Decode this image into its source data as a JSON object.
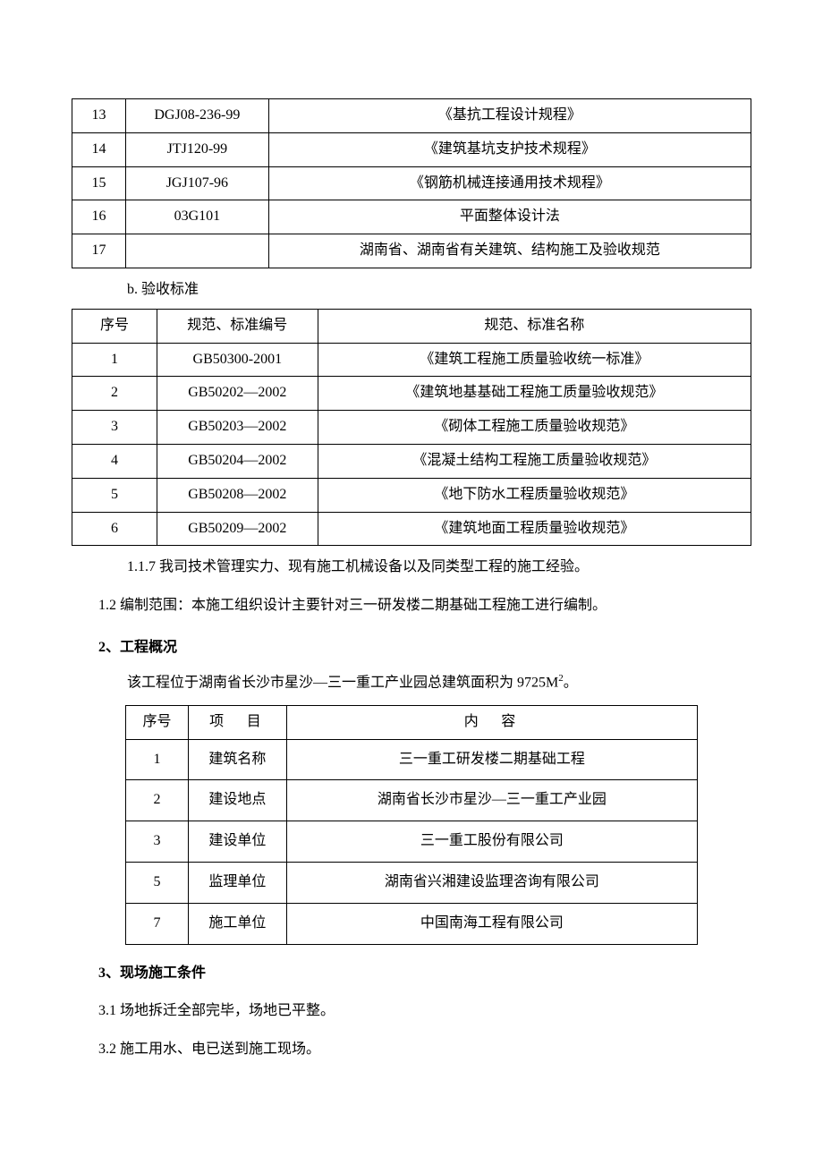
{
  "table1": {
    "rows": [
      {
        "num": "13",
        "code": "DGJ08-236-99",
        "name": "《基抗工程设计规程》"
      },
      {
        "num": "14",
        "code": "JTJ120-99",
        "name": "《建筑基坑支护技术规程》"
      },
      {
        "num": "15",
        "code": "JGJ107-96",
        "name": "《钢筋机械连接通用技术规程》"
      },
      {
        "num": "16",
        "code": "03G101",
        "name": "平面整体设计法"
      },
      {
        "num": "17",
        "code": "",
        "name": "湖南省、湖南省有关建筑、结构施工及验收规范"
      }
    ]
  },
  "line_b": "b. 验收标准",
  "table2": {
    "header": {
      "col1": "序号",
      "col2": "规范、标准编号",
      "col3": "规范、标准名称"
    },
    "rows": [
      {
        "num": "1",
        "code": "GB50300-2001",
        "name": "《建筑工程施工质量验收统一标准》"
      },
      {
        "num": "2",
        "code": "GB50202—2002",
        "name": "《建筑地基基础工程施工质量验收规范》"
      },
      {
        "num": "3",
        "code": "GB50203—2002",
        "name": "《砌体工程施工质量验收规范》"
      },
      {
        "num": "4",
        "code": "GB50204—2002",
        "name": "《混凝土结构工程施工质量验收规范》"
      },
      {
        "num": "5",
        "code": "GB50208—2002",
        "name": "《地下防水工程质量验收规范》"
      },
      {
        "num": "6",
        "code": "GB50209—2002",
        "name": "《建筑地面工程质量验收规范》"
      }
    ]
  },
  "line_117": "1.1.7 我司技术管理实力、现有施工机械设备以及同类型工程的施工经验。",
  "line_12": "1.2 编制范围：本施工组织设计主要针对三一研发楼二期基础工程施工进行编制。",
  "heading2": "2、工程概况",
  "line_overview_pre": "该工程位于湖南省长沙市星沙—三一重工产业园总建筑面积为 9725M",
  "line_overview_sup": "2",
  "line_overview_post": "。",
  "table3": {
    "header": {
      "col1": "序号",
      "col2": "项　目",
      "col3": "内　容"
    },
    "rows": [
      {
        "num": "1",
        "item": "建筑名称",
        "content": "三一重工研发楼二期基础工程"
      },
      {
        "num": "2",
        "item": "建设地点",
        "content": "湖南省长沙市星沙—三一重工产业园"
      },
      {
        "num": "3",
        "item": "建设单位",
        "content": "三一重工股份有限公司"
      },
      {
        "num": "5",
        "item": "监理单位",
        "content": "湖南省兴湘建设监理咨询有限公司"
      },
      {
        "num": "7",
        "item": "施工单位",
        "content": "中国南海工程有限公司"
      }
    ]
  },
  "heading3": "3、现场施工条件",
  "line_31": "3.1 场地拆迁全部完毕，场地已平整。",
  "line_32": "3.2 施工用水、电已送到施工现场。"
}
